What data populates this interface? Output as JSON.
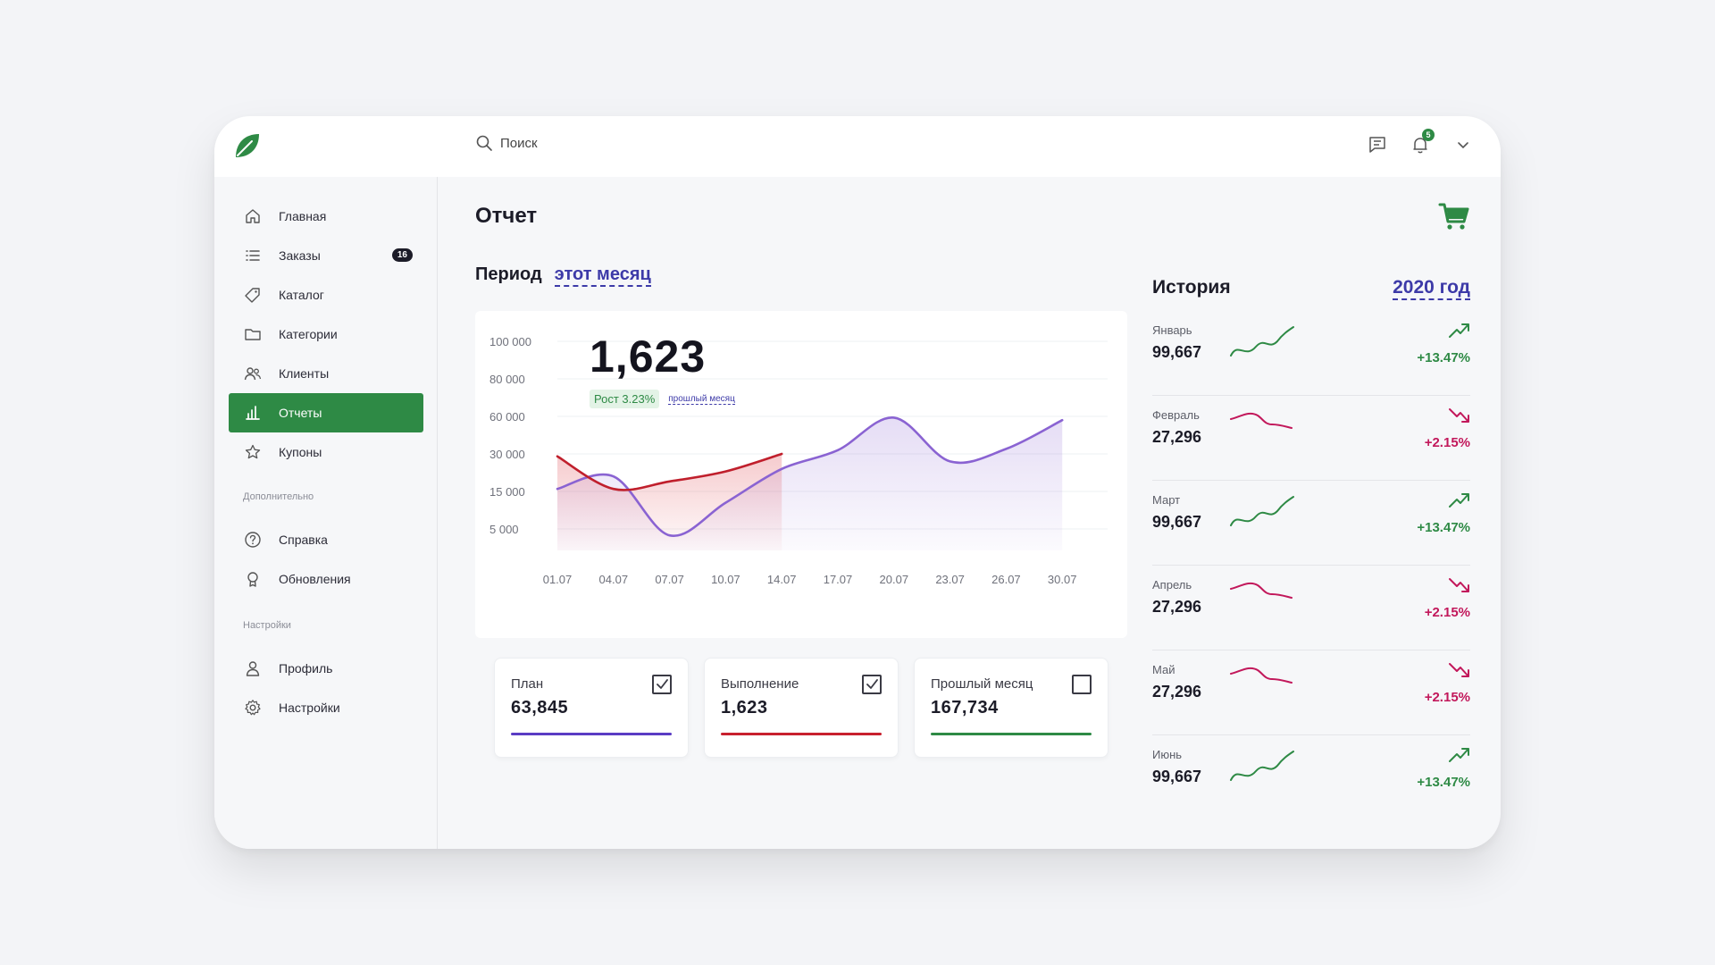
{
  "search": {
    "placeholder": "Поиск"
  },
  "header": {
    "notifications_count": "5"
  },
  "sidebar": {
    "items": [
      {
        "label": "Главная",
        "icon": "home-icon"
      },
      {
        "label": "Заказы",
        "icon": "list-icon",
        "badge": "16"
      },
      {
        "label": "Каталог",
        "icon": "tag-icon"
      },
      {
        "label": "Категории",
        "icon": "folder-icon"
      },
      {
        "label": "Клиенты",
        "icon": "users-icon"
      },
      {
        "label": "Отчеты",
        "icon": "bar-chart-icon",
        "active": true
      },
      {
        "label": "Купоны",
        "icon": "star-icon"
      }
    ],
    "section_extra": "Дополнительно",
    "extra_items": [
      {
        "label": "Справка",
        "icon": "help-icon"
      },
      {
        "label": "Обновления",
        "icon": "award-icon"
      }
    ],
    "section_settings": "Настройки",
    "settings_items": [
      {
        "label": "Профиль",
        "icon": "user-icon"
      },
      {
        "label": "Настройки",
        "icon": "gear-icon"
      }
    ]
  },
  "main": {
    "title": "Отчет",
    "period_label": "Период",
    "period_value": "этот месяц",
    "big_value": "1,623",
    "growth_badge": "Рост 3.23%",
    "growth_link": "прошлый месяц"
  },
  "chart_data": {
    "type": "area",
    "title": "",
    "y_ticks": [
      "100 000",
      "80 000",
      "60 000",
      "30 000",
      "15 000",
      "5 000"
    ],
    "x_ticks": [
      "01.07",
      "04.07",
      "07.07",
      "10.07",
      "14.07",
      "17.07",
      "20.07",
      "23.07",
      "26.07",
      "30.07"
    ],
    "series": [
      {
        "name": "План",
        "color": "#8a63d2",
        "values": [
          16000,
          21000,
          3500,
          12000,
          24000,
          33000,
          59000,
          27000,
          34000,
          57000
        ]
      },
      {
        "name": "Выполнение",
        "color": "#c01f2c",
        "values": [
          29000,
          16000,
          19000,
          23000,
          30000
        ]
      }
    ]
  },
  "legend": [
    {
      "label": "План",
      "value": "63,845",
      "checked": true,
      "color": "#5a3cc4"
    },
    {
      "label": "Выполнение",
      "value": "1,623",
      "checked": true,
      "color": "#c8202e"
    },
    {
      "label": "Прошлый месяц",
      "value": "167,734",
      "checked": false,
      "color": "#2e8a45"
    }
  ],
  "history": {
    "title": "История",
    "year": "2020 год",
    "rows": [
      {
        "month": "Январь",
        "value": "99,667",
        "change": "+13.47%",
        "trend": "up"
      },
      {
        "month": "Февраль",
        "value": "27,296",
        "change": "+2.15%",
        "trend": "down"
      },
      {
        "month": "Март",
        "value": "99,667",
        "change": "+13.47%",
        "trend": "up"
      },
      {
        "month": "Апрель",
        "value": "27,296",
        "change": "+2.15%",
        "trend": "down"
      },
      {
        "month": "Май",
        "value": "27,296",
        "change": "+2.15%",
        "trend": "down"
      },
      {
        "month": "Июнь",
        "value": "99,667",
        "change": "+13.47%",
        "trend": "up"
      }
    ]
  },
  "colors": {
    "accent": "#2e8a45",
    "link": "#3d3aa8",
    "up": "#2e8a45",
    "down": "#c2185b"
  }
}
